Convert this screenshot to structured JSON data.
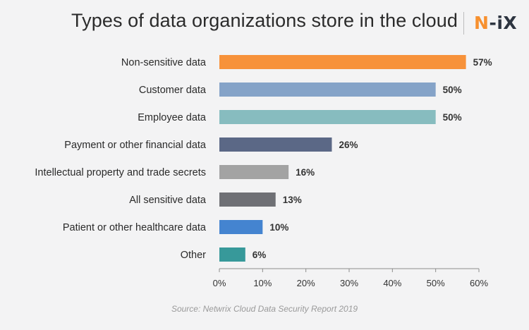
{
  "title": "Types of data organizations store in the cloud",
  "logo": {
    "n": "N",
    "ix": "-iX"
  },
  "source": "Source: Netwrix Cloud Data Security Report 2019",
  "chart_data": {
    "type": "bar",
    "orientation": "horizontal",
    "categories": [
      "Non-sensitive data",
      "Customer data",
      "Employee data",
      "Payment or other financial data",
      "Intellectual property and trade secrets",
      "All sensitive data",
      "Patient or other healthcare data",
      "Other"
    ],
    "values": [
      57,
      50,
      50,
      26,
      16,
      13,
      10,
      6
    ],
    "value_labels": [
      "57%",
      "50%",
      "50%",
      "26%",
      "16%",
      "13%",
      "10%",
      "6%"
    ],
    "colors": [
      "#f7923a",
      "#85a3c8",
      "#87bcbf",
      "#5b6886",
      "#a3a3a3",
      "#6f7075",
      "#4484d0",
      "#37999a"
    ],
    "xlim": [
      0,
      60
    ],
    "xticks": [
      0,
      10,
      20,
      30,
      40,
      50,
      60
    ],
    "xtick_labels": [
      "0%",
      "10%",
      "20%",
      "30%",
      "40%",
      "50%",
      "60%"
    ],
    "grid": false,
    "legend": "none"
  }
}
